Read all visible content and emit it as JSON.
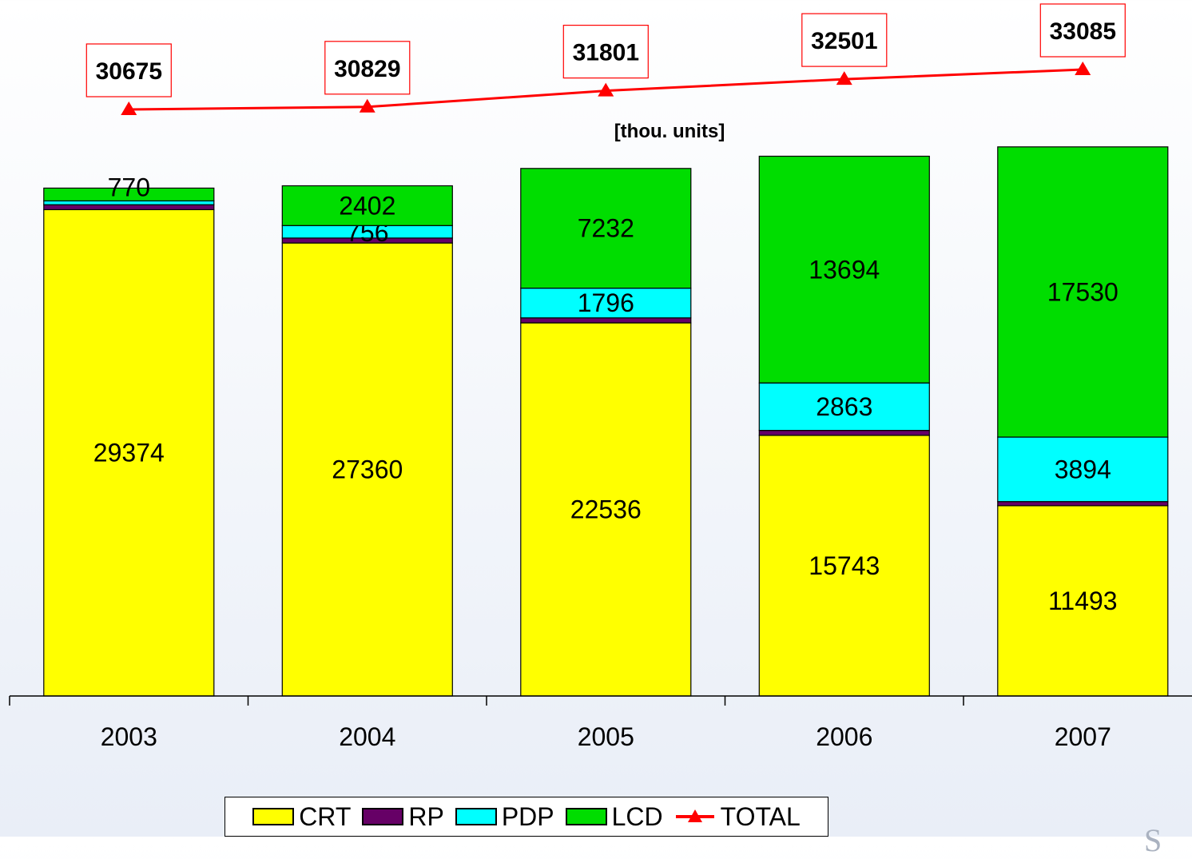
{
  "chart_data": {
    "type": "bar",
    "stacked": true,
    "categories": [
      "2003",
      "2004",
      "2005",
      "2006",
      "2007"
    ],
    "unit_label": "[thou. units]",
    "series": [
      {
        "name": "CRT",
        "color": "#ffff00",
        "values": [
          29374,
          27360,
          22536,
          15743,
          11493
        ],
        "labels": [
          "29374",
          "27360",
          "22536",
          "15743",
          "11493"
        ]
      },
      {
        "name": "RP",
        "color": "#660066",
        "values": [
          300,
          300,
          300,
          300,
          250
        ],
        "labels": [
          "",
          "",
          "",
          "",
          ""
        ]
      },
      {
        "name": "PDP",
        "color": "#00ffff",
        "values": [
          231,
          756,
          1796,
          2863,
          3894
        ],
        "labels": [
          "",
          "756",
          "1796",
          "2863",
          "3894"
        ]
      },
      {
        "name": "LCD",
        "color": "#00dd00",
        "values": [
          770,
          2402,
          7232,
          13694,
          17530
        ],
        "labels": [
          "770",
          "2402",
          "7232",
          "13694",
          "17530"
        ]
      }
    ],
    "line": {
      "name": "TOTAL",
      "color": "#ff0000",
      "values": [
        30675,
        30829,
        31801,
        32501,
        33085
      ],
      "labels": [
        "30675",
        "30829",
        "31801",
        "32501",
        "33085"
      ]
    },
    "grid": false,
    "legend_position": "bottom"
  },
  "legend": {
    "crt": "CRT",
    "rp": "RP",
    "pdp": "PDP",
    "lcd": "LCD",
    "total": "TOTAL"
  },
  "corner_glyph": "S"
}
